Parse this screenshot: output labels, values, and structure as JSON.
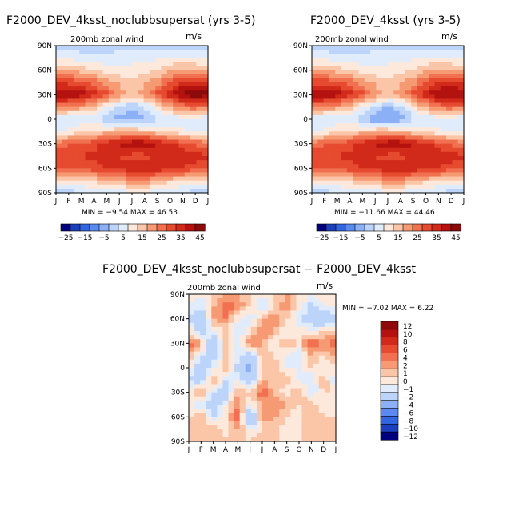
{
  "chart_data": [
    {
      "type": "heatmap",
      "title": "F2000_DEV_4ksst_noclubbsupersat (yrs 3-5)",
      "subtitle": "200mb zonal wind",
      "units": "m/s",
      "xlabel_ticks": [
        "J",
        "F",
        "M",
        "A",
        "M",
        "J",
        "J",
        "A",
        "S",
        "O",
        "N",
        "D",
        "J"
      ],
      "ylabel_ticks": [
        "90N",
        "60N",
        "30N",
        "0",
        "30S",
        "60S",
        "90S"
      ],
      "ylim": [
        -90,
        90
      ],
      "min": -9.54,
      "max": 46.53,
      "stats_text": "MIN = −9.54  MAX =  46.53",
      "colorbar_ticks": [
        "−25",
        "−15",
        "−5",
        "5",
        "15",
        "25",
        "35",
        "45"
      ],
      "rows": [
        {
          "lat": 90,
          "values": [
            -3,
            -2,
            -3,
            -4,
            -2,
            -2,
            -3,
            -2,
            -3,
            -3,
            -3,
            -2,
            -3
          ]
        },
        {
          "lat": 75,
          "values": [
            5,
            4,
            3,
            1,
            1,
            3,
            4,
            3,
            4,
            5,
            6,
            5,
            5
          ]
        },
        {
          "lat": 60,
          "values": [
            14,
            14,
            12,
            10,
            8,
            6,
            6,
            8,
            10,
            14,
            16,
            15,
            14
          ]
        },
        {
          "lat": 45,
          "values": [
            28,
            28,
            26,
            22,
            18,
            14,
            10,
            14,
            18,
            26,
            30,
            30,
            28
          ]
        },
        {
          "lat": 30,
          "values": [
            42,
            40,
            38,
            32,
            26,
            18,
            14,
            18,
            26,
            34,
            42,
            44,
            42
          ]
        },
        {
          "lat": 15,
          "values": [
            22,
            20,
            18,
            12,
            6,
            0,
            -4,
            0,
            8,
            16,
            22,
            24,
            22
          ]
        },
        {
          "lat": 0,
          "values": [
            0,
            0,
            2,
            2,
            -4,
            -8,
            -8,
            -6,
            -2,
            2,
            2,
            2,
            0
          ]
        },
        {
          "lat": -15,
          "values": [
            4,
            6,
            8,
            10,
            12,
            14,
            14,
            12,
            10,
            8,
            6,
            4,
            4
          ]
        },
        {
          "lat": -30,
          "values": [
            22,
            24,
            26,
            28,
            32,
            36,
            40,
            40,
            36,
            32,
            28,
            24,
            22
          ]
        },
        {
          "lat": -45,
          "values": [
            30,
            30,
            30,
            32,
            32,
            30,
            28,
            28,
            30,
            34,
            34,
            32,
            30
          ]
        },
        {
          "lat": -60,
          "values": [
            28,
            26,
            26,
            28,
            30,
            32,
            34,
            36,
            34,
            32,
            30,
            28,
            28
          ]
        },
        {
          "lat": -75,
          "values": [
            8,
            8,
            10,
            12,
            14,
            16,
            18,
            18,
            16,
            12,
            10,
            8,
            8
          ]
        },
        {
          "lat": -90,
          "values": [
            -2,
            -2,
            -1,
            0,
            2,
            2,
            3,
            3,
            2,
            0,
            -1,
            -2,
            -2
          ]
        }
      ]
    },
    {
      "type": "heatmap",
      "title": "F2000_DEV_4ksst (yrs 3-5)",
      "subtitle": "200mb zonal wind",
      "units": "m/s",
      "xlabel_ticks": [
        "J",
        "F",
        "M",
        "A",
        "M",
        "J",
        "J",
        "A",
        "S",
        "O",
        "N",
        "D",
        "J"
      ],
      "ylabel_ticks": [
        "90N",
        "60N",
        "30N",
        "0",
        "30S",
        "60S",
        "90S"
      ],
      "ylim": [
        -90,
        90
      ],
      "min": -11.66,
      "max": 44.46,
      "stats_text": "MIN = −11.66  MAX =  44.46",
      "colorbar_ticks": [
        "−25",
        "−15",
        "−5",
        "5",
        "15",
        "25",
        "35",
        "45"
      ],
      "rows": [
        {
          "lat": 90,
          "values": [
            -3,
            -3,
            -4,
            -4,
            -2,
            -2,
            -3,
            -3,
            -3,
            -3,
            -3,
            -3,
            -3
          ]
        },
        {
          "lat": 75,
          "values": [
            5,
            4,
            3,
            1,
            1,
            3,
            4,
            3,
            4,
            5,
            6,
            5,
            5
          ]
        },
        {
          "lat": 60,
          "values": [
            14,
            14,
            12,
            10,
            8,
            6,
            6,
            8,
            10,
            14,
            16,
            15,
            14
          ]
        },
        {
          "lat": 45,
          "values": [
            28,
            28,
            26,
            22,
            18,
            14,
            10,
            14,
            18,
            26,
            30,
            30,
            28
          ]
        },
        {
          "lat": 30,
          "values": [
            40,
            40,
            38,
            32,
            26,
            18,
            14,
            18,
            26,
            34,
            40,
            42,
            40
          ]
        },
        {
          "lat": 15,
          "values": [
            22,
            20,
            18,
            12,
            6,
            0,
            -6,
            -2,
            8,
            16,
            22,
            24,
            22
          ]
        },
        {
          "lat": 0,
          "values": [
            0,
            0,
            2,
            2,
            -4,
            -10,
            -10,
            -8,
            -2,
            2,
            2,
            2,
            0
          ]
        },
        {
          "lat": -15,
          "values": [
            4,
            6,
            8,
            10,
            12,
            14,
            14,
            12,
            10,
            8,
            6,
            4,
            4
          ]
        },
        {
          "lat": -30,
          "values": [
            22,
            24,
            26,
            28,
            32,
            36,
            40,
            40,
            36,
            32,
            28,
            24,
            22
          ]
        },
        {
          "lat": -45,
          "values": [
            30,
            30,
            30,
            32,
            32,
            30,
            28,
            28,
            30,
            34,
            34,
            32,
            30
          ]
        },
        {
          "lat": -60,
          "values": [
            28,
            26,
            26,
            28,
            30,
            32,
            34,
            36,
            34,
            32,
            30,
            28,
            28
          ]
        },
        {
          "lat": -75,
          "values": [
            8,
            8,
            10,
            12,
            14,
            16,
            18,
            18,
            16,
            12,
            10,
            8,
            8
          ]
        },
        {
          "lat": -90,
          "values": [
            -2,
            -2,
            -1,
            0,
            2,
            2,
            3,
            3,
            2,
            0,
            -1,
            -2,
            -2
          ]
        }
      ]
    },
    {
      "type": "heatmap",
      "title": "F2000_DEV_4ksst_noclubbsupersat − F2000_DEV_4ksst",
      "subtitle": "200mb zonal wind",
      "units": "m/s",
      "xlabel_ticks": [
        "J",
        "F",
        "M",
        "A",
        "M",
        "J",
        "J",
        "A",
        "S",
        "O",
        "N",
        "D",
        "J"
      ],
      "ylabel_ticks": [
        "90N",
        "60N",
        "30N",
        "0",
        "30S",
        "60S",
        "90S"
      ],
      "ylim": [
        -90,
        90
      ],
      "min": -7.02,
      "max": 6.22,
      "stats_text": "MIN = −7.02  MAX =    6.22",
      "colorbar_ticks": [
        "12",
        "10",
        "8",
        "6",
        "4",
        "2",
        "1",
        "0",
        "−1",
        "−2",
        "−4",
        "−6",
        "−8",
        "−10",
        "−12"
      ],
      "rows": [
        {
          "lat": 90,
          "values": [
            0,
            -1,
            0,
            1,
            1,
            0,
            -1,
            0,
            1,
            0,
            -1,
            0,
            0
          ]
        },
        {
          "lat": 75,
          "values": [
            -1,
            -2,
            1,
            3,
            2,
            0,
            -2,
            0,
            2,
            0,
            -3,
            -1,
            -1
          ]
        },
        {
          "lat": 60,
          "values": [
            -2,
            -4,
            1,
            2,
            -1,
            -2,
            1,
            2,
            0,
            -2,
            -3,
            -4,
            -2
          ]
        },
        {
          "lat": 45,
          "values": [
            0,
            -3,
            -1,
            0,
            -2,
            0,
            2,
            1,
            -1,
            0,
            -1,
            0,
            0
          ]
        },
        {
          "lat": 30,
          "values": [
            3,
            1,
            -4,
            1,
            -2,
            2,
            1,
            -1,
            1,
            0,
            3,
            2,
            3
          ]
        },
        {
          "lat": 15,
          "values": [
            1,
            -2,
            -3,
            0,
            -1,
            -3,
            1,
            0,
            -1,
            -2,
            1,
            0,
            1
          ]
        },
        {
          "lat": 0,
          "values": [
            0,
            -4,
            -1,
            1,
            -3,
            -5,
            0,
            1,
            -1,
            -1,
            0,
            -1,
            0
          ]
        },
        {
          "lat": -15,
          "values": [
            -2,
            -3,
            1,
            -2,
            -1,
            -3,
            1,
            0,
            1,
            -1,
            -2,
            1,
            -2
          ]
        },
        {
          "lat": -30,
          "values": [
            0,
            1,
            -2,
            -3,
            1,
            0,
            3,
            1,
            -1,
            1,
            -2,
            0,
            0
          ]
        },
        {
          "lat": -45,
          "values": [
            -1,
            -2,
            -3,
            -1,
            2,
            -1,
            1,
            2,
            1,
            0,
            1,
            -1,
            -1
          ]
        },
        {
          "lat": -60,
          "values": [
            0,
            1,
            -2,
            0,
            3,
            -6,
            2,
            1,
            0,
            -1,
            1,
            0,
            0
          ]
        },
        {
          "lat": -75,
          "values": [
            1,
            0,
            1,
            -1,
            1,
            -1,
            0,
            1,
            -1,
            0,
            1,
            1,
            1
          ]
        },
        {
          "lat": -90,
          "values": [
            0,
            0,
            0,
            1,
            0,
            0,
            1,
            0,
            0,
            0,
            0,
            0,
            0
          ]
        }
      ]
    }
  ],
  "colors": {
    "full_scale": [
      "#00007f",
      "#1c3fbf",
      "#3266e0",
      "#5a8af0",
      "#8cb0f5",
      "#bcd4fa",
      "#e0ecfc",
      "#fde8dc",
      "#fbc6a8",
      "#f69a74",
      "#f07050",
      "#e64a2f",
      "#d22a1a",
      "#b3120f",
      "#8c0a0a"
    ],
    "diff_scale": [
      "#8c0a0a",
      "#b3120f",
      "#d22a1a",
      "#e64a2f",
      "#f07050",
      "#f69a74",
      "#fbc6a8",
      "#fde8dc",
      "#e0ecfc",
      "#bcd4fa",
      "#8cb0f5",
      "#5a8af0",
      "#3266e0",
      "#1c3fbf",
      "#00007f"
    ]
  }
}
